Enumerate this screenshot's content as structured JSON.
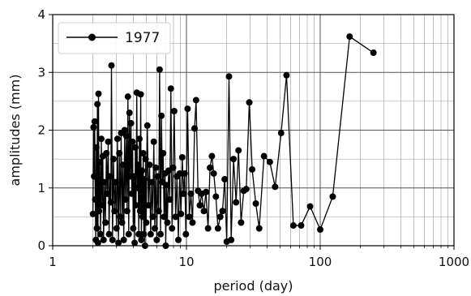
{
  "chart_data": {
    "type": "line",
    "title": "",
    "xlabel": "period (day)",
    "ylabel": "amplitudes (mm)",
    "xscale": "log",
    "xlim": [
      1,
      1000
    ],
    "ylim": [
      0,
      4
    ],
    "grid": true,
    "legend_position": "top-left",
    "x_ticks": [
      1,
      10,
      100,
      1000
    ],
    "x_tick_labels": [
      "1",
      "10",
      "100",
      "1000"
    ],
    "y_ticks": [
      0,
      1,
      2,
      3,
      4
    ],
    "y_tick_labels": [
      "0",
      "1",
      "2",
      "3",
      "4"
    ],
    "series": [
      {
        "name": "1977",
        "color": "#000000",
        "marker": "circle",
        "points": [
          [
            2.0,
            0.55
          ],
          [
            2.02,
            2.05
          ],
          [
            2.04,
            1.2
          ],
          [
            2.06,
            2.15
          ],
          [
            2.08,
            0.8
          ],
          [
            2.1,
            0.1
          ],
          [
            2.12,
            1.7
          ],
          [
            2.14,
            0.3
          ],
          [
            2.16,
            2.45
          ],
          [
            2.18,
            0.05
          ],
          [
            2.2,
            2.63
          ],
          [
            2.22,
            0.6
          ],
          [
            2.25,
            1.45
          ],
          [
            2.28,
            0.2
          ],
          [
            2.31,
            1.85
          ],
          [
            2.34,
            0.7
          ],
          [
            2.37,
            1.55
          ],
          [
            2.4,
            0.1
          ],
          [
            2.44,
            1.1
          ],
          [
            2.48,
            0.4
          ],
          [
            2.52,
            1.6
          ],
          [
            2.56,
            0.9
          ],
          [
            2.6,
            1.8
          ],
          [
            2.64,
            0.2
          ],
          [
            2.68,
            1.2
          ],
          [
            2.72,
            0.75
          ],
          [
            2.75,
            3.12
          ],
          [
            2.8,
            0.1
          ],
          [
            2.85,
            1.5
          ],
          [
            2.9,
            0.6
          ],
          [
            2.95,
            1.1
          ],
          [
            3.0,
            0.3
          ],
          [
            3.05,
            1.85
          ],
          [
            3.1,
            0.05
          ],
          [
            3.15,
            1.6
          ],
          [
            3.2,
            0.5
          ],
          [
            3.25,
            1.95
          ],
          [
            3.3,
            0.4
          ],
          [
            3.35,
            1.4
          ],
          [
            3.4,
            0.1
          ],
          [
            3.45,
            2.0
          ],
          [
            3.5,
            0.8
          ],
          [
            3.55,
            1.9
          ],
          [
            3.6,
            0.6
          ],
          [
            3.65,
            2.58
          ],
          [
            3.7,
            0.2
          ],
          [
            3.75,
            2.3
          ],
          [
            3.8,
            1.2
          ],
          [
            3.85,
            2.12
          ],
          [
            3.9,
            0.9
          ],
          [
            3.95,
            1.8
          ],
          [
            4.0,
            0.3
          ],
          [
            4.05,
            1.2
          ],
          [
            4.1,
            0.05
          ],
          [
            4.15,
            1.7
          ],
          [
            4.2,
            0.7
          ],
          [
            4.25,
            2.65
          ],
          [
            4.3,
            1.0
          ],
          [
            4.35,
            1.4
          ],
          [
            4.4,
            0.2
          ],
          [
            4.45,
            1.85
          ],
          [
            4.5,
            0.6
          ],
          [
            4.55,
            2.62
          ],
          [
            4.6,
            0.1
          ],
          [
            4.65,
            1.3
          ],
          [
            4.7,
            0.5
          ],
          [
            4.75,
            1.6
          ],
          [
            4.8,
            0.2
          ],
          [
            4.85,
            1.15
          ],
          [
            4.9,
            0.0
          ],
          [
            4.95,
            1.5
          ],
          [
            5.0,
            0.4
          ],
          [
            5.1,
            2.08
          ],
          [
            5.2,
            0.7
          ],
          [
            5.3,
            1.4
          ],
          [
            5.4,
            0.2
          ],
          [
            5.5,
            1.1
          ],
          [
            5.6,
            0.5
          ],
          [
            5.7,
            1.8
          ],
          [
            5.8,
            0.3
          ],
          [
            5.9,
            1.35
          ],
          [
            6.0,
            0.1
          ],
          [
            6.1,
            1.2
          ],
          [
            6.2,
            0.6
          ],
          [
            6.3,
            3.05
          ],
          [
            6.4,
            0.2
          ],
          [
            6.5,
            2.25
          ],
          [
            6.6,
            1.1
          ],
          [
            6.7,
            1.6
          ],
          [
            6.8,
            0.5
          ],
          [
            6.9,
            1.25
          ],
          [
            7.0,
            0.0
          ],
          [
            7.1,
            1.05
          ],
          [
            7.2,
            0.4
          ],
          [
            7.35,
            1.3
          ],
          [
            7.5,
            0.8
          ],
          [
            7.65,
            2.72
          ],
          [
            7.8,
            0.3
          ],
          [
            7.95,
            1.35
          ],
          [
            8.1,
            2.33
          ],
          [
            8.3,
            0.5
          ],
          [
            8.5,
            1.2
          ],
          [
            8.7,
            0.1
          ],
          [
            8.9,
            1.25
          ],
          [
            9.1,
            0.55
          ],
          [
            9.3,
            1.53
          ],
          [
            9.5,
            0.9
          ],
          [
            9.7,
            1.25
          ],
          [
            9.9,
            0.2
          ],
          [
            10.2,
            2.37
          ],
          [
            10.5,
            0.5
          ],
          [
            10.8,
            0.9
          ],
          [
            11.1,
            0.4
          ],
          [
            11.5,
            2.03
          ],
          [
            11.8,
            2.52
          ],
          [
            12.2,
            0.95
          ],
          [
            12.6,
            0.7
          ],
          [
            13.0,
            0.9
          ],
          [
            13.5,
            0.6
          ],
          [
            14.0,
            0.93
          ],
          [
            14.5,
            0.3
          ],
          [
            15.0,
            1.35
          ],
          [
            15.5,
            1.55
          ],
          [
            16.0,
            1.25
          ],
          [
            16.6,
            0.85
          ],
          [
            17.2,
            0.3
          ],
          [
            17.9,
            0.5
          ],
          [
            18.6,
            0.6
          ],
          [
            19.3,
            1.15
          ],
          [
            20.0,
            0.07
          ],
          [
            20.8,
            2.93
          ],
          [
            21.6,
            0.1
          ],
          [
            22.5,
            1.5
          ],
          [
            23.5,
            0.75
          ],
          [
            24.5,
            1.65
          ],
          [
            25.6,
            0.4
          ],
          [
            26.8,
            0.95
          ],
          [
            28.0,
            0.98
          ],
          [
            29.5,
            2.48
          ],
          [
            31.0,
            1.32
          ],
          [
            33.0,
            0.73
          ],
          [
            35.0,
            0.3
          ],
          [
            38.0,
            1.55
          ],
          [
            42.0,
            1.45
          ],
          [
            46.0,
            1.02
          ],
          [
            51.0,
            1.95
          ],
          [
            56.0,
            2.95
          ],
          [
            63.0,
            0.35
          ],
          [
            72.0,
            0.35
          ],
          [
            84.0,
            0.68
          ],
          [
            100.0,
            0.28
          ],
          [
            124.0,
            0.85
          ],
          [
            166.0,
            3.62
          ],
          [
            250.0,
            3.34
          ]
        ]
      }
    ]
  }
}
